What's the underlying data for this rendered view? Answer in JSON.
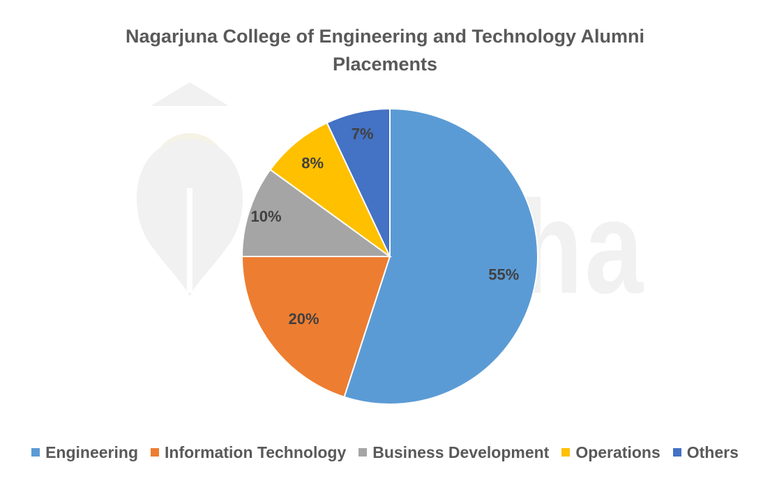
{
  "chart_data": {
    "type": "pie",
    "title": "Nagarjuna College of Engineering and Technology Alumni Placements",
    "title_lines": [
      "Nagarjuna College of Engineering and Technology Alumni",
      "Placements"
    ],
    "categories": [
      "Engineering",
      "Information Technology",
      "Business Development",
      "Operations",
      "Others"
    ],
    "values": [
      55,
      20,
      10,
      8,
      7
    ],
    "data_labels": [
      "55%",
      "20%",
      "10%",
      "8%",
      "7%"
    ],
    "colors": [
      "#5B9BD5",
      "#ED7D31",
      "#A5A5A5",
      "#FFC000",
      "#4472C4"
    ],
    "legend_placement": "bottom",
    "watermark": "shiksha"
  }
}
